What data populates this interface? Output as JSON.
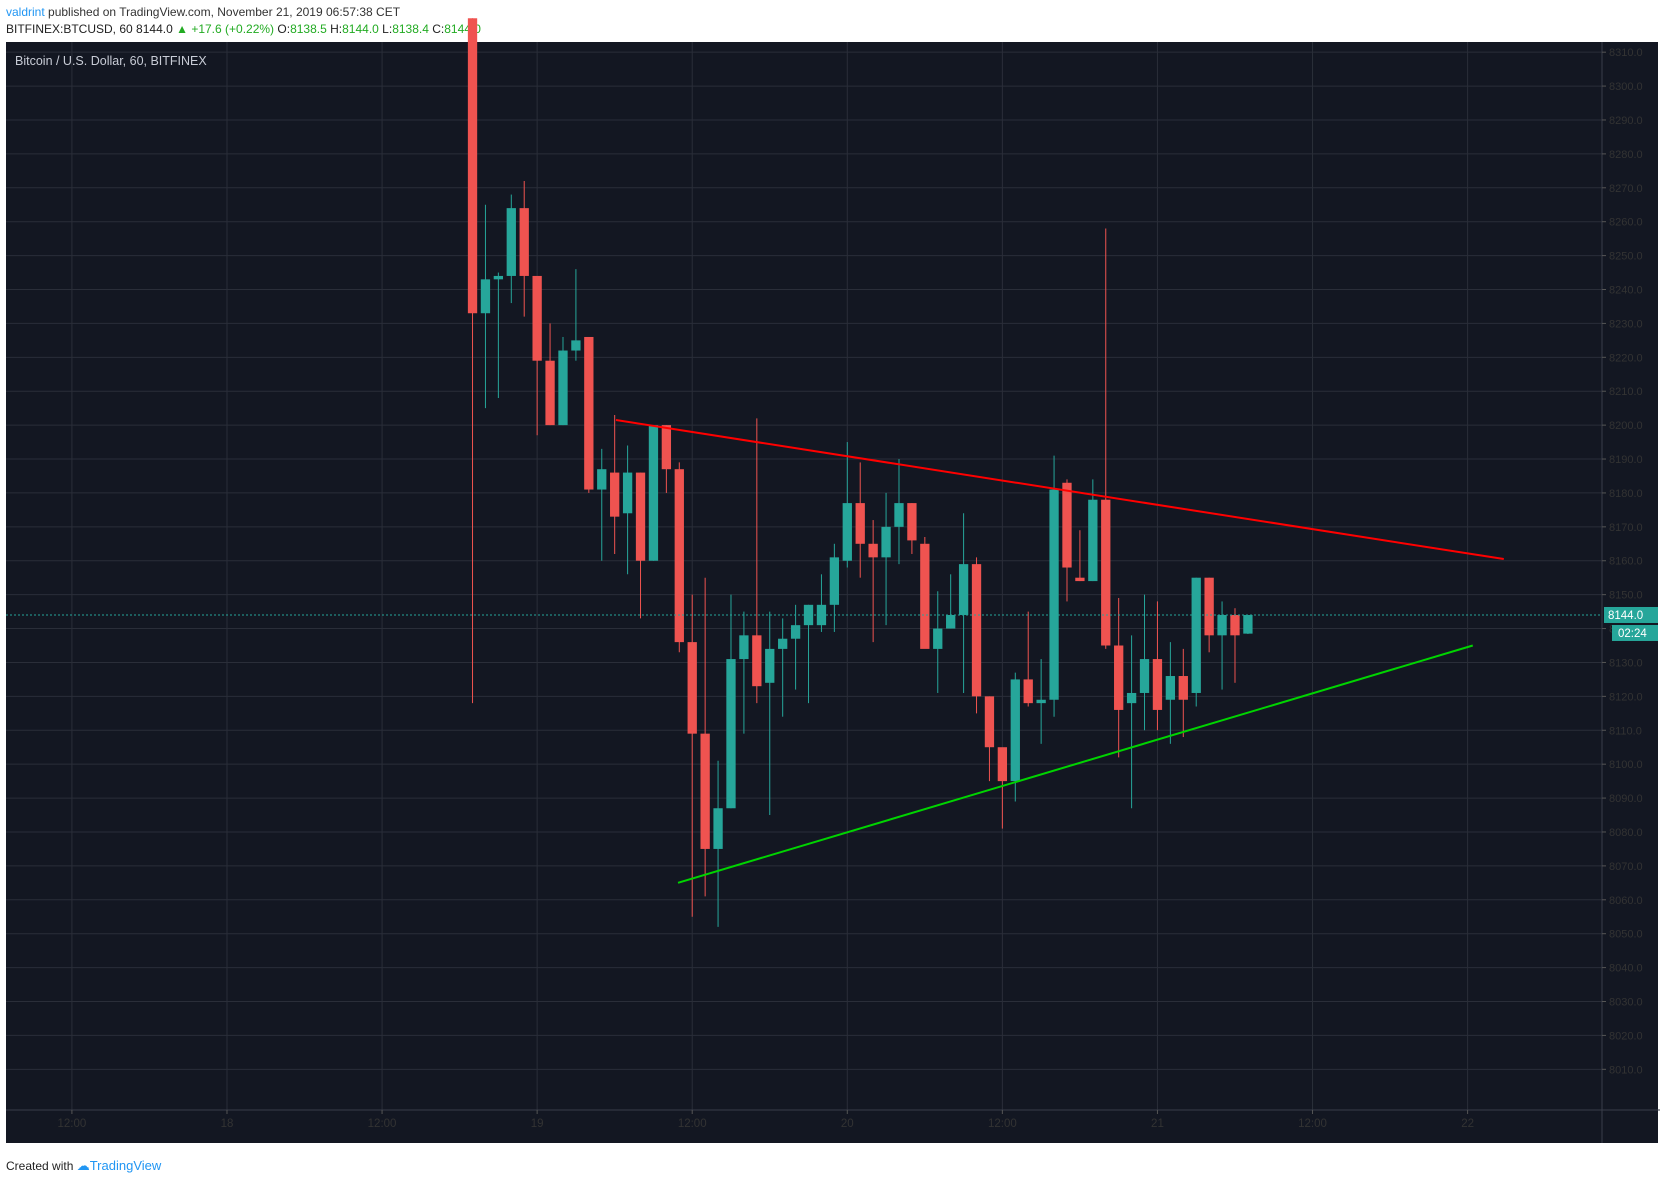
{
  "header": {
    "user": "valdrint",
    "published": "published on TradingView.com, November 21, 2019 06:57:38 CET",
    "symbol": "BITFINEX:BTCUSD, 60",
    "price": "8144.0",
    "change": "+17.6 (+0.22%)",
    "ohlc": [
      {
        "label": "O:",
        "value": "8138.5"
      },
      {
        "label": "H:",
        "value": "8144.0"
      },
      {
        "label": "L:",
        "value": "8138.4"
      },
      {
        "label": "C:",
        "value": "8144.0"
      }
    ]
  },
  "footer": {
    "created_with": "Created with",
    "brand": "TradingView"
  },
  "colors": {
    "background": "#131722",
    "grid": "#2a2e39",
    "up": "#26a69a",
    "down": "#ef5350",
    "resistance": "#ff0000",
    "support": "#00d400",
    "last_price": "#26a69a"
  },
  "chart_data": {
    "type": "candlestick",
    "title": "Bitcoin / U.S. Dollar, 60, BITFINEX",
    "y_ticks": [
      "8310.0",
      "8300.0",
      "8290.0",
      "8280.0",
      "8270.0",
      "8260.0",
      "8250.0",
      "8240.0",
      "8230.0",
      "8220.0",
      "8210.0",
      "8200.0",
      "8190.0",
      "8180.0",
      "8170.0",
      "8160.0",
      "8150.0",
      "8140.0",
      "8130.0",
      "8120.0",
      "8110.0",
      "8100.0",
      "8090.0",
      "8080.0",
      "8070.0",
      "8060.0",
      "8050.0",
      "8040.0",
      "8030.0",
      "8020.0",
      "8010.0"
    ],
    "x_ticks": [
      {
        "t": 12,
        "label": "12:00"
      },
      {
        "t": 24,
        "label": "18"
      },
      {
        "t": 36,
        "label": "12:00"
      },
      {
        "t": 48,
        "label": "19"
      },
      {
        "t": 60,
        "label": "12:00"
      },
      {
        "t": 72,
        "label": "20"
      },
      {
        "t": 84,
        "label": "12:00"
      },
      {
        "t": 96,
        "label": "21"
      },
      {
        "t": 108,
        "label": "12:00"
      },
      {
        "t": 120,
        "label": "22"
      }
    ],
    "x_axis_note": "t = hours since Nov 17 00:00",
    "ylim": [
      7998,
      8313
    ],
    "xlim": [
      6.9,
      130.4
    ],
    "last_price": {
      "label": "8144.0",
      "value": 8144.0
    },
    "countdown": "02:24",
    "candles": [
      [
        43,
        8320,
        8320,
        8118,
        8233
      ],
      [
        44,
        8233,
        8265,
        8205,
        8243
      ],
      [
        45,
        8243,
        8245,
        8208,
        8244
      ],
      [
        46,
        8244,
        8268,
        8236,
        8264
      ],
      [
        47,
        8264,
        8272,
        8232,
        8244
      ],
      [
        48,
        8244,
        8244,
        8197,
        8219
      ],
      [
        49,
        8219,
        8230,
        8200,
        8200
      ],
      [
        50,
        8200,
        8226,
        8200,
        8222
      ],
      [
        51,
        8222,
        8246,
        8219,
        8225
      ],
      [
        52,
        8226,
        8226,
        8180,
        8181
      ],
      [
        53,
        8181,
        8193,
        8160,
        8187
      ],
      [
        54,
        8186,
        8203,
        8162,
        8173
      ],
      [
        55,
        8174,
        8194,
        8156,
        8186
      ],
      [
        56,
        8186,
        8186,
        8143,
        8160
      ],
      [
        57,
        8160,
        8200,
        8160,
        8200
      ],
      [
        58,
        8200,
        8200,
        8180,
        8187
      ],
      [
        59,
        8187,
        8189,
        8133,
        8136
      ],
      [
        60,
        8136,
        8150,
        8055,
        8109
      ],
      [
        61,
        8109,
        8155,
        8061,
        8075
      ],
      [
        62,
        8075,
        8101,
        8052,
        8087
      ],
      [
        63,
        8087,
        8150,
        8087,
        8131
      ],
      [
        64,
        8131,
        8145,
        8109,
        8138
      ],
      [
        65,
        8138,
        8202,
        8118,
        8123
      ],
      [
        66,
        8124,
        8145,
        8085,
        8134
      ],
      [
        67,
        8134,
        8143,
        8114,
        8137
      ],
      [
        68,
        8137,
        8147,
        8122,
        8141
      ],
      [
        69,
        8141,
        8147,
        8118,
        8147
      ],
      [
        70,
        8141,
        8156,
        8139,
        8147
      ],
      [
        71,
        8147,
        8165,
        8139,
        8161
      ],
      [
        72,
        8160,
        8195,
        8158,
        8177
      ],
      [
        73,
        8177,
        8189,
        8155,
        8165
      ],
      [
        74,
        8165,
        8172,
        8136,
        8161
      ],
      [
        75,
        8161,
        8180,
        8141,
        8170
      ],
      [
        76,
        8170,
        8190,
        8159,
        8177
      ],
      [
        77,
        8177,
        8177,
        8162,
        8166
      ],
      [
        78,
        8165,
        8167,
        8137,
        8134
      ],
      [
        79,
        8134,
        8151,
        8121,
        8140
      ],
      [
        80,
        8140,
        8156,
        8140,
        8144
      ],
      [
        81,
        8144,
        8174,
        8121,
        8159
      ],
      [
        82,
        8159,
        8161,
        8115,
        8120
      ],
      [
        83,
        8120,
        8120,
        8095,
        8105
      ],
      [
        84,
        8105,
        8104,
        8081,
        8095
      ],
      [
        85,
        8095,
        8127,
        8089,
        8125
      ],
      [
        86,
        8125,
        8145,
        8117,
        8118
      ],
      [
        87,
        8118,
        8131,
        8106,
        8119
      ],
      [
        88,
        8119,
        8191,
        8114,
        8181
      ],
      [
        89,
        8183,
        8184,
        8148,
        8158
      ],
      [
        90,
        8155,
        8169,
        8154,
        8154
      ],
      [
        91,
        8154,
        8184,
        8154,
        8178
      ],
      [
        92,
        8178,
        8258,
        8134,
        8135
      ],
      [
        93,
        8135,
        8149,
        8102,
        8116
      ],
      [
        94,
        8118,
        8138,
        8087,
        8121
      ],
      [
        95,
        8121,
        8150,
        8110,
        8131
      ],
      [
        96,
        8131,
        8148,
        8110,
        8116
      ],
      [
        97,
        8119,
        8136,
        8106,
        8126
      ],
      [
        98,
        8126,
        8134,
        8108,
        8119
      ],
      [
        99,
        8121,
        8155,
        8117,
        8155
      ],
      [
        100,
        8155,
        8155,
        8133,
        8138
      ],
      [
        101,
        8138,
        8148,
        8122,
        8144
      ],
      [
        102,
        8144,
        8146,
        8124,
        8138
      ],
      [
        103,
        8138.5,
        8144,
        8138.4,
        8144
      ]
    ],
    "trendlines": [
      {
        "name": "resistance",
        "from": [
          54.1,
          8201.5
        ],
        "to": [
          122.8,
          8160.5
        ]
      },
      {
        "name": "support",
        "from": [
          58.9,
          8065
        ],
        "to": [
          120.4,
          8135
        ]
      }
    ]
  }
}
